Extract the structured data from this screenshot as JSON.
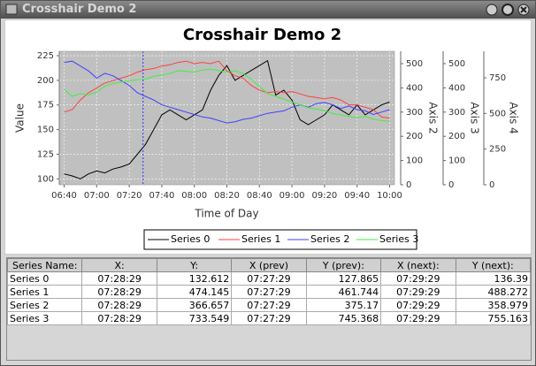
{
  "window": {
    "title": "Crosshair Demo 2"
  },
  "chart_data": {
    "type": "line",
    "title": "Crosshair Demo 2",
    "xlabel": "Time of Day",
    "ylabel": "Value",
    "y2label": "Axis 2",
    "y3label": "Axis 3",
    "y4label": "Axis 4",
    "x": [
      "06:40",
      "06:45",
      "06:50",
      "06:55",
      "07:00",
      "07:05",
      "07:10",
      "07:15",
      "07:20",
      "07:25",
      "07:30",
      "07:35",
      "07:40",
      "07:45",
      "07:50",
      "07:55",
      "08:00",
      "08:05",
      "08:10",
      "08:15",
      "08:20",
      "08:25",
      "08:30",
      "08:35",
      "08:40",
      "08:45",
      "08:50",
      "08:55",
      "09:00",
      "09:05",
      "09:10",
      "09:15",
      "09:20",
      "09:25",
      "09:30",
      "09:35",
      "09:40",
      "09:45",
      "09:50",
      "09:55",
      "10:00"
    ],
    "xlim": [
      "06:37",
      "10:03"
    ],
    "xticks": [
      "06:40",
      "07:00",
      "07:20",
      "07:40",
      "08:00",
      "08:20",
      "08:40",
      "09:00",
      "09:20",
      "09:40",
      "10:00"
    ],
    "ylim": [
      94,
      229.5
    ],
    "yticks": [
      100,
      125,
      150,
      175,
      200,
      225
    ],
    "y2lim": [
      0,
      551
    ],
    "y2ticks": [
      0,
      100,
      200,
      300,
      400,
      500
    ],
    "y3lim": [
      0,
      551
    ],
    "y3ticks": [
      0,
      100,
      200,
      300,
      400,
      500
    ],
    "y4lim": [
      0,
      936
    ],
    "y4ticks": [
      0,
      250,
      500,
      750
    ],
    "grid": true,
    "legend": "bottom",
    "series": [
      {
        "name": "Series 0",
        "color": "#000000",
        "axis": "y",
        "values": [
          105,
          103,
          100,
          105,
          108,
          106,
          110,
          112,
          115,
          125,
          135,
          150,
          165,
          170,
          165,
          160,
          165,
          170,
          190,
          205,
          215,
          200,
          205,
          210,
          215,
          220,
          185,
          190,
          180,
          160,
          155,
          160,
          165,
          175,
          170,
          165,
          175,
          165,
          170,
          175,
          178
        ]
      },
      {
        "name": "Series 1",
        "color": "#ff4040",
        "axis": "y2",
        "values": [
          300,
          310,
          350,
          380,
          400,
          420,
          430,
          440,
          450,
          465,
          475,
          480,
          490,
          495,
          505,
          510,
          500,
          505,
          500,
          510,
          470,
          450,
          440,
          410,
          390,
          380,
          385,
          380,
          385,
          375,
          365,
          360,
          355,
          360,
          350,
          330,
          330,
          320,
          310,
          280,
          275
        ]
      },
      {
        "name": "Series 2",
        "color": "#4040ff",
        "axis": "y3",
        "values": [
          505,
          510,
          490,
          470,
          440,
          460,
          450,
          430,
          410,
          380,
          365,
          350,
          330,
          320,
          310,
          300,
          290,
          280,
          275,
          265,
          255,
          260,
          270,
          275,
          285,
          295,
          300,
          305,
          320,
          330,
          320,
          335,
          340,
          330,
          315,
          325,
          310,
          305,
          290,
          300,
          310
        ]
      },
      {
        "name": "Series 3",
        "color": "#40ee40",
        "axis": "y4",
        "values": [
          670,
          620,
          640,
          630,
          650,
          690,
          710,
          720,
          730,
          735,
          740,
          760,
          770,
          780,
          800,
          795,
          790,
          805,
          810,
          800,
          790,
          800,
          780,
          740,
          690,
          640,
          620,
          600,
          580,
          560,
          540,
          530,
          520,
          500,
          490,
          480,
          470,
          480,
          460,
          450,
          445
        ]
      }
    ]
  },
  "table": {
    "columns": [
      "Series Name:",
      "X:",
      "Y:",
      "X (prev)",
      "Y (prev):",
      "X (next):",
      "Y (next):"
    ],
    "rows": [
      [
        "Series 0",
        "07:28:29",
        132.612,
        "07:27:29",
        127.865,
        "07:29:29",
        136.39
      ],
      [
        "Series 1",
        "07:28:29",
        474.145,
        "07:27:29",
        461.744,
        "07:29:29",
        488.272
      ],
      [
        "Series 2",
        "07:28:29",
        366.657,
        "07:27:29",
        375.17,
        "07:29:29",
        358.979
      ],
      [
        "Series 3",
        "07:28:29",
        733.549,
        "07:27:29",
        745.368,
        "07:29:29",
        755.163
      ]
    ]
  }
}
